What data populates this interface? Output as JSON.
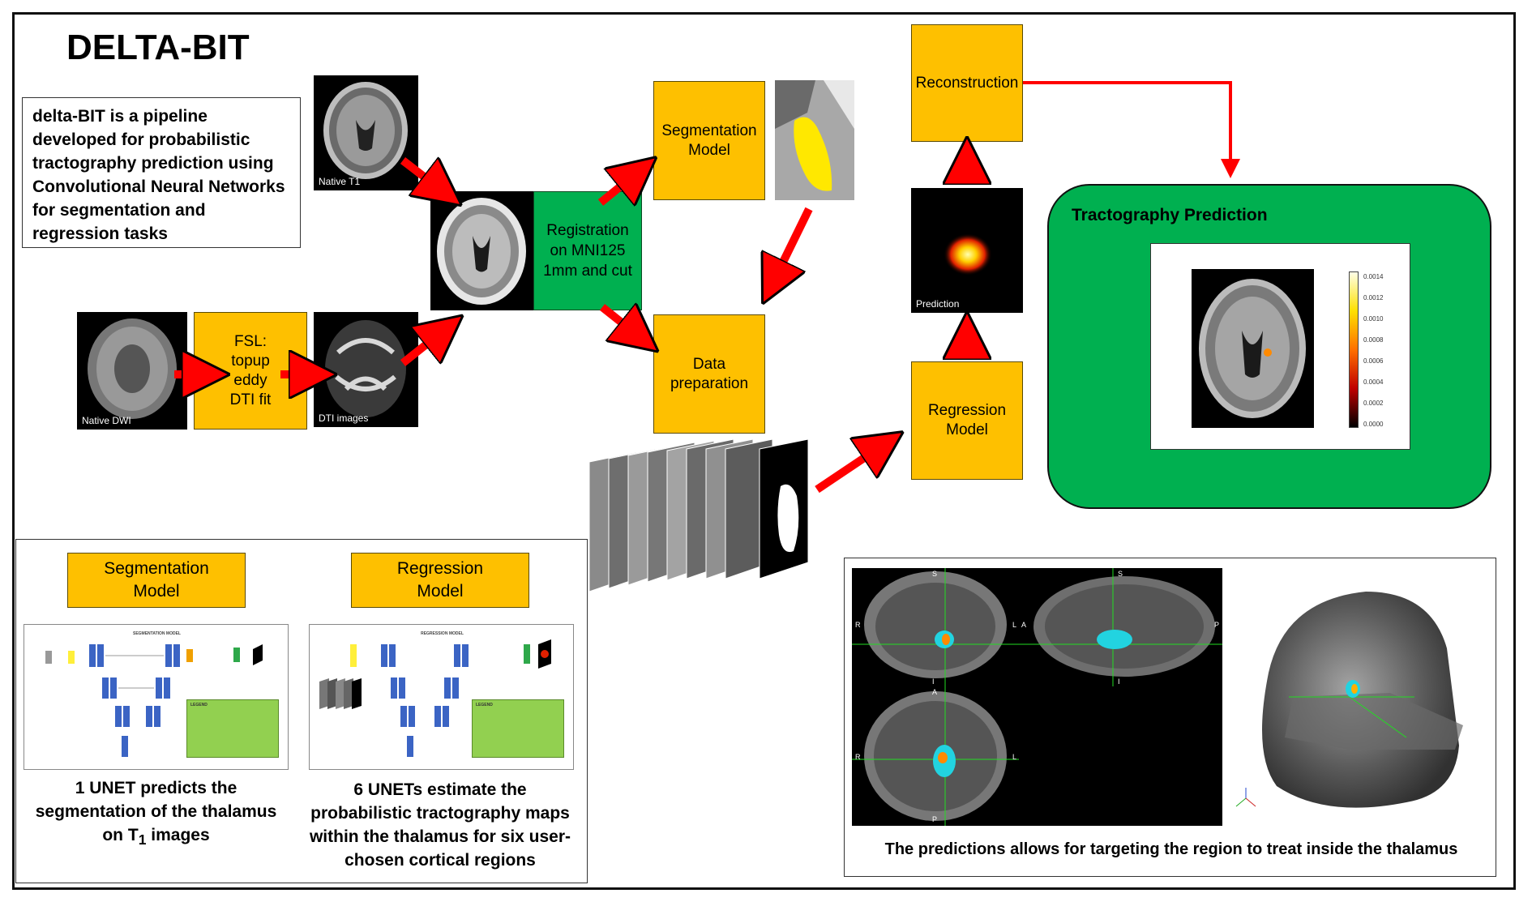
{
  "header": {
    "title": "DELTA-BIT"
  },
  "description": "delta-BIT is a pipeline developed for probabilistic tractography prediction using Convolutional Neural Networks for segmentation and regression tasks",
  "images": {
    "native_t1": "Native T1",
    "native_dwi": "Native DWI",
    "dti_images": "DTI images",
    "prediction": "Prediction"
  },
  "boxes": {
    "fsl": [
      "FSL:",
      "topup",
      "eddy",
      "DTI fit"
    ],
    "registration": [
      "Registration",
      "on MNI125",
      "1mm and cut"
    ],
    "segmentation_model": [
      "Segmentation",
      "Model"
    ],
    "data_preparation": [
      "Data",
      "preparation"
    ],
    "regression_model": [
      "Regression",
      "Model"
    ],
    "reconstruction": "Reconstruction"
  },
  "tractography": {
    "title": "Tractography Prediction",
    "colorbar_ticks": [
      "0.0014",
      "0.0012",
      "0.0010",
      "0.0008",
      "0.0006",
      "0.0004",
      "0.0002",
      "0.0000"
    ]
  },
  "models_panel": {
    "segmentation": {
      "label": [
        "Segmentation",
        "Model"
      ],
      "thumb_title": "SEGMENTATION MODEL",
      "thumb_legend": "LEGEND"
    },
    "regression": {
      "label": [
        "Regression",
        "Model"
      ],
      "thumb_title": "REGRESSION MODEL",
      "thumb_legend": "LEGEND"
    },
    "caption_seg_main": "1 UNET predicts the segmentation of the thalamus on T",
    "caption_seg_sub": "1",
    "caption_seg_tail": " images",
    "caption_reg": "6 UNETs estimate the probabilistic tractography maps within the thalamus for six user-chosen cortical regions"
  },
  "viewer_panel": {
    "caption": "The predictions allows for targeting the region to treat inside the thalamus",
    "orientation_labels": {
      "s": "S",
      "r": "R",
      "l": "L",
      "a": "A",
      "p": "P",
      "i": "I"
    }
  },
  "colors": {
    "accent_orange": "#fec000",
    "accent_green": "#00b050",
    "arrow_red": "#ff0000"
  }
}
